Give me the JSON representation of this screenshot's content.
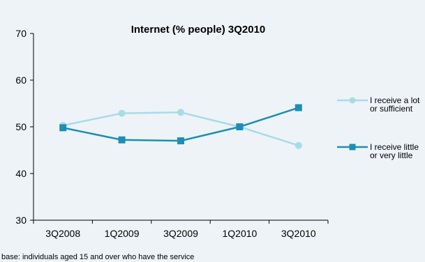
{
  "chart_data": {
    "type": "line",
    "title": "Internet (% people) 3Q2010",
    "categories": [
      "3Q2008",
      "1Q2009",
      "3Q2009",
      "1Q2010",
      "3Q2010"
    ],
    "ylim": [
      30,
      70
    ],
    "yticks": [
      "70",
      "60",
      "50",
      "40",
      "30"
    ],
    "xlabel": "",
    "ylabel": "",
    "grid": false,
    "legend_position": "right",
    "series": [
      {
        "name_lines": [
          "I receive a lot",
          "or sufficient"
        ],
        "values": [
          50.3,
          52.9,
          53.1,
          50.0,
          46.0
        ],
        "color": "#a8dbe6",
        "marker": "circle"
      },
      {
        "name_lines": [
          "I receive little",
          "or very little"
        ],
        "values": [
          49.8,
          47.2,
          47.0,
          50.0,
          54.1
        ],
        "color": "#1b8fb3",
        "marker": "square"
      }
    ],
    "footnote": "base: individuals aged 15 and over who have the service"
  }
}
